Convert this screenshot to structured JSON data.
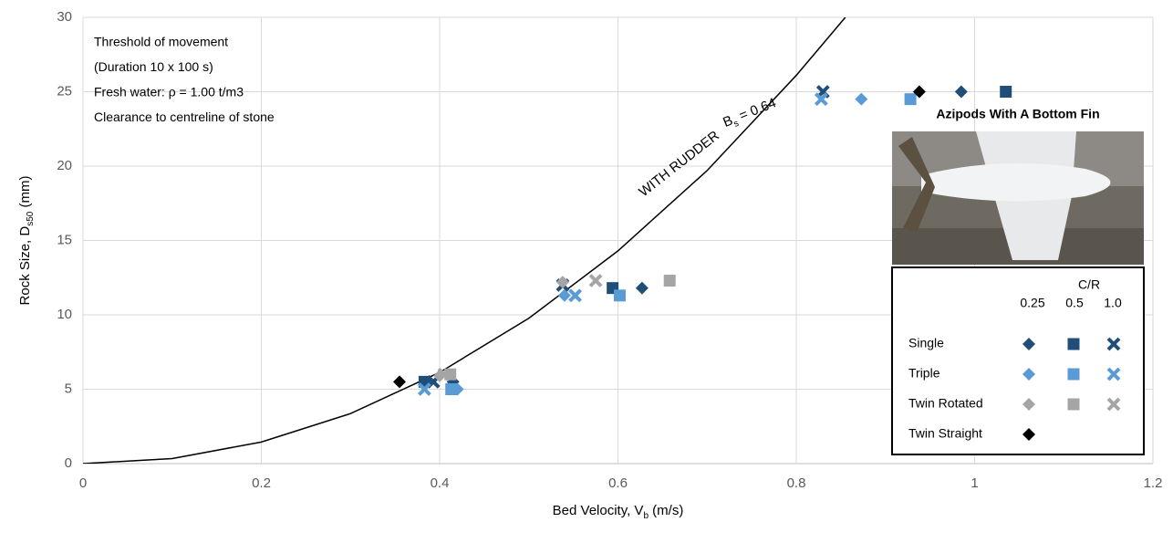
{
  "chart_data": {
    "type": "scatter",
    "xlim": [
      0,
      1.2
    ],
    "xticks": [
      0,
      0.2,
      0.4,
      0.6,
      0.8,
      1,
      1.2
    ],
    "ylim": [
      0,
      30
    ],
    "yticks": [
      0,
      5,
      10,
      15,
      20,
      25,
      30
    ],
    "grid": true,
    "x_label": {
      "text": "Bed Velocity, V",
      "subscript": "b",
      "unit": " (m/s)"
    },
    "y_label": {
      "text": "Rock Size, D",
      "subscript": "s50",
      "unit": " (mm)"
    },
    "annotations": [
      "Threshold of movement",
      "(Duration 10 x 100 s)",
      "Fresh water: ρ = 1.00 t/m3",
      "Clearance to centreline of stone"
    ],
    "curve": {
      "color": "#000000",
      "x": [
        0,
        0.1,
        0.2,
        0.3,
        0.4,
        0.5,
        0.6,
        0.7,
        0.8,
        0.855
      ],
      "y": [
        0,
        0.34,
        1.45,
        3.36,
        6.13,
        9.77,
        14.3,
        19.7,
        26.1,
        30
      ],
      "label": "WITH RUDDER",
      "symbol": "B",
      "subscript": "s",
      "value_text": " = 0.64"
    },
    "image_title": "Azipods With A Bottom Fin",
    "legend": {
      "title": "C/R",
      "columns": [
        "0.25",
        "0.5",
        "1.0"
      ]
    },
    "series": [
      {
        "name": "Single",
        "color": "#1f4e79",
        "markers": [
          "diamond",
          "square",
          "x"
        ],
        "groups": [
          {
            "x": [
              0.415,
              0.627,
              0.985
            ],
            "y": [
              5.5,
              11.8,
              25
            ]
          },
          {
            "x": [
              0.383,
              0.594,
              1.035
            ],
            "y": [
              5.5,
              11.8,
              25
            ]
          },
          {
            "x": [
              0.393,
              0.538,
              0.83
            ],
            "y": [
              5.5,
              12,
              25
            ]
          }
        ]
      },
      {
        "name": "Triple",
        "color": "#5b9bd5",
        "markers": [
          "diamond",
          "square",
          "x"
        ],
        "groups": [
          {
            "x": [
              0.42,
              0.54,
              0.873
            ],
            "y": [
              5,
              11.3,
              24.5
            ]
          },
          {
            "x": [
              0.413,
              0.602,
              0.928
            ],
            "y": [
              5,
              11.3,
              24.5
            ]
          },
          {
            "x": [
              0.383,
              0.552,
              0.828
            ],
            "y": [
              5,
              11.3,
              24.5
            ]
          }
        ]
      },
      {
        "name": "Twin Rotated",
        "color": "#a5a5a5",
        "markers": [
          "diamond",
          "square",
          "x"
        ],
        "groups": [
          {
            "x": [
              0.4,
              0.538
            ],
            "y": [
              5.9,
              12.2
            ]
          },
          {
            "x": [
              0.412,
              0.658
            ],
            "y": [
              6,
              12.3
            ]
          },
          {
            "x": [
              0.405,
              0.575
            ],
            "y": [
              6,
              12.3
            ]
          }
        ]
      },
      {
        "name": "Twin Straight",
        "color": "#000000",
        "markers": [
          "diamond"
        ],
        "groups": [
          {
            "x": [
              0.355,
              0.938
            ],
            "y": [
              5.5,
              25
            ]
          }
        ]
      }
    ]
  }
}
